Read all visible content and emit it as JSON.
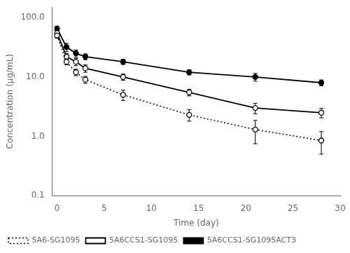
{
  "chart_data": {
    "type": "line",
    "xlabel": "Time (day)",
    "ylabel": "Concentration (μg/mL)",
    "x": [
      0,
      1,
      2,
      3,
      7,
      14,
      21,
      28
    ],
    "series": [
      {
        "name": "5A6-SG1095",
        "color": "#000000",
        "line_style": "dotted",
        "marker": "open_circle",
        "values": [
          50,
          18,
          12,
          9,
          5.0,
          2.3,
          1.3,
          0.85
        ],
        "yerr": [
          5,
          2,
          1.5,
          1.2,
          1.0,
          0.5,
          0.55,
          0.35
        ]
      },
      {
        "name": "5A6CCS1-SG1095",
        "color": "#000000",
        "line_style": "solid",
        "marker": "open_circle",
        "values": [
          55,
          22,
          18,
          14,
          10,
          5.5,
          3.0,
          2.5
        ],
        "yerr": [
          6,
          3,
          2.5,
          2,
          1.2,
          0.7,
          0.6,
          0.45
        ]
      },
      {
        "name": "5A6CCS1-SG1095ACT3",
        "color": "#000000",
        "line_style": "solid",
        "marker": "circle",
        "values": [
          65,
          32,
          25,
          22,
          18,
          12,
          10,
          8
        ],
        "yerr": [
          7,
          5,
          3.5,
          2.5,
          1.8,
          1.2,
          1.5,
          0.9
        ]
      }
    ],
    "xlim": [
      -0.5,
      30
    ],
    "xticks": [
      0,
      5,
      10,
      15,
      20,
      25,
      30
    ],
    "ylim": [
      0.1,
      150
    ],
    "yticks": [
      0.1,
      {
        "value": 1,
        "label": "1.0"
      },
      {
        "value": 10,
        "label": "10.0"
      },
      {
        "value": 100,
        "label": "100.0"
      }
    ],
    "log": "y",
    "grid": false,
    "legend": "lower left"
  }
}
